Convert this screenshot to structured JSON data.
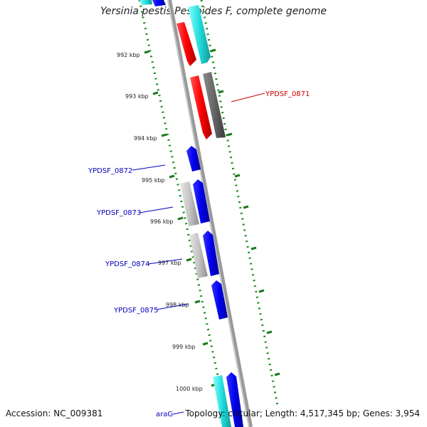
{
  "title": "Yersinia pestis Pestoides F, complete genome",
  "footer": {
    "accession": "Accession: NC_009381",
    "topology": "Topology: circular; Length: 4,517,345 bp; Genes: 3,954"
  },
  "ticks": [
    "992 kbp",
    "993 kbp",
    "994 kbp",
    "995 kbp",
    "996 kbp",
    "997 kbp",
    "998 kbp",
    "999 kbp",
    "1000 kbp"
  ],
  "gene_labels": [
    {
      "text": "YPDSF_0871",
      "color": "#cc0000"
    },
    {
      "text": "YPDSF_0872",
      "color": "#0000bb"
    },
    {
      "text": "YPDSF_0873",
      "color": "#0000bb"
    },
    {
      "text": "YPDSF_0874",
      "color": "#0000bb"
    },
    {
      "text": "YPDSF_0875",
      "color": "#0000bb"
    },
    {
      "text": "araG",
      "color": "#0000bb"
    }
  ],
  "colors": {
    "red_gene": "#ff1a1a",
    "blue_gene": "#0000ee",
    "cyan_gene": "#33dddd",
    "gray_gene": "#c0c0c0",
    "darkgray_gene": "#666666",
    "backbone": "#888888",
    "tick_green": "#1a7a1a",
    "dot_green": "#1a8a1a"
  }
}
